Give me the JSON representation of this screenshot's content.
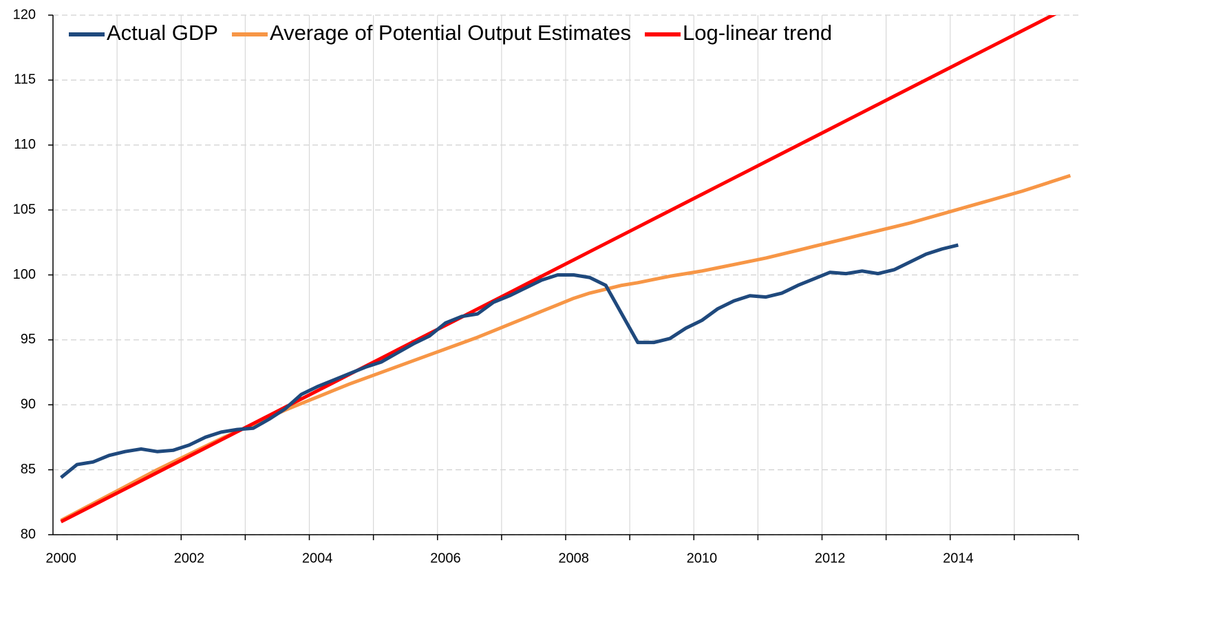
{
  "chart_data": {
    "type": "line",
    "categories": [
      "2000",
      null,
      null,
      null,
      null,
      null,
      null,
      null,
      "2002",
      null,
      null,
      null,
      null,
      null,
      null,
      null,
      "2004",
      null,
      null,
      null,
      null,
      null,
      null,
      null,
      "2006",
      null,
      null,
      null,
      null,
      null,
      null,
      null,
      "2008",
      null,
      null,
      null,
      null,
      null,
      null,
      null,
      "2010",
      null,
      null,
      null,
      null,
      null,
      null,
      null,
      "2012",
      null,
      null,
      null,
      null,
      null,
      null,
      null,
      "2014",
      null,
      null,
      null,
      null,
      null,
      null,
      null
    ],
    "series": [
      {
        "name": "Actual GDP",
        "color": "#1f497d",
        "values": [
          84.4,
          85.4,
          85.6,
          86.1,
          86.4,
          86.6,
          86.4,
          86.5,
          86.9,
          87.5,
          87.9,
          88.1,
          88.2,
          88.9,
          89.7,
          90.8,
          91.4,
          91.9,
          92.4,
          92.9,
          93.3,
          94.0,
          94.7,
          95.3,
          96.3,
          96.8,
          97.0,
          97.9,
          98.4,
          99.0,
          99.6,
          100.0,
          100.0,
          99.8,
          99.2,
          97.0,
          94.8,
          94.8,
          95.1,
          95.9,
          96.5,
          97.4,
          98.0,
          98.4,
          98.3,
          98.6,
          99.2,
          99.7,
          100.2,
          100.1,
          100.3,
          100.1,
          100.4,
          101.0,
          101.6,
          102.0,
          102.3,
          null,
          null,
          null,
          null,
          null,
          null,
          null
        ]
      },
      {
        "name": "Average of Potential Output Estimates",
        "color": "#f79646",
        "values": [
          81.1,
          81.75,
          82.4,
          83.05,
          83.7,
          84.35,
          85.0,
          85.6,
          86.2,
          86.8,
          87.4,
          87.95,
          88.5,
          89.05,
          89.6,
          90.1,
          90.6,
          91.1,
          91.6,
          92.05,
          92.5,
          92.95,
          93.4,
          93.85,
          94.3,
          94.75,
          95.2,
          95.7,
          96.2,
          96.7,
          97.2,
          97.7,
          98.2,
          98.6,
          98.9,
          99.2,
          99.4,
          99.65,
          99.9,
          100.1,
          100.3,
          100.55,
          100.8,
          101.05,
          101.3,
          101.6,
          101.9,
          102.2,
          102.5,
          102.8,
          103.1,
          103.4,
          103.7,
          104.0,
          104.35,
          104.7,
          105.05,
          105.4,
          105.75,
          106.1,
          106.45,
          106.85,
          107.25,
          107.65
        ]
      },
      {
        "name": "Log-linear trend",
        "color": "#ff0000",
        "values": [
          81.0,
          81.63,
          82.26,
          82.89,
          83.52,
          84.15,
          84.78,
          85.41,
          86.04,
          86.67,
          87.3,
          87.93,
          88.56,
          89.19,
          89.82,
          90.45,
          91.08,
          91.71,
          92.34,
          92.97,
          93.6,
          94.23,
          94.86,
          95.49,
          96.12,
          96.75,
          97.38,
          98.01,
          98.64,
          99.27,
          99.9,
          100.53,
          101.16,
          101.79,
          102.42,
          103.05,
          103.68,
          104.31,
          104.94,
          105.57,
          106.2,
          106.83,
          107.46,
          108.09,
          108.72,
          109.35,
          109.98,
          110.61,
          111.24,
          111.87,
          112.5,
          113.13,
          113.76,
          114.39,
          115.02,
          115.65,
          116.28,
          116.91,
          117.54,
          118.17,
          118.8,
          119.43,
          120.06,
          120.69
        ]
      }
    ],
    "ylim": [
      80,
      120
    ],
    "yticks": [
      80,
      85,
      90,
      95,
      100,
      105,
      110,
      115,
      120
    ],
    "grid": true,
    "legend": "upper left"
  }
}
